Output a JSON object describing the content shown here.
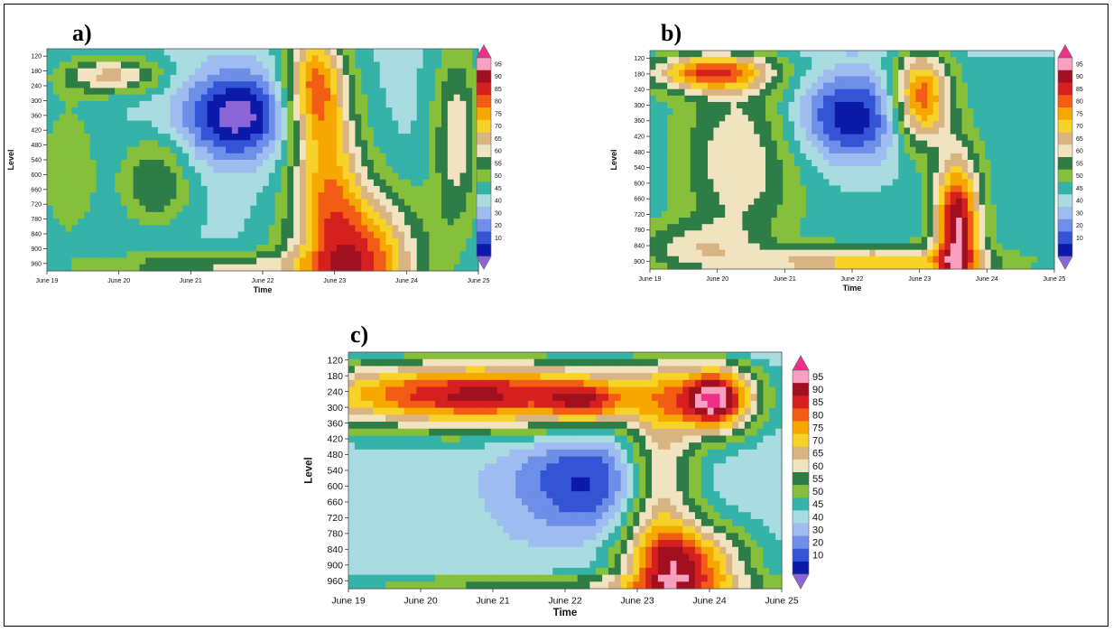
{
  "chart_data": [
    {
      "type": "heatmap",
      "panel_label": "a)",
      "xlabel": "Time",
      "ylabel": "Level",
      "x_ticks": [
        "June 19",
        "June 20",
        "June 21",
        "June 22",
        "June 23",
        "June 24",
        "June 25"
      ],
      "y_ticks": [
        120,
        180,
        240,
        300,
        360,
        420,
        480,
        540,
        600,
        660,
        720,
        780,
        840,
        900,
        960
      ],
      "colorbar_ticks": [
        10,
        20,
        30,
        40,
        45,
        50,
        55,
        60,
        65,
        70,
        75,
        80,
        85,
        90,
        95
      ],
      "grid": false,
      "colorbar_placement": "right"
    },
    {
      "type": "heatmap",
      "panel_label": "b)",
      "xlabel": "Time",
      "ylabel": "Level",
      "x_ticks": [
        "June 19",
        "June 20",
        "June 21",
        "June 22",
        "June 23",
        "June 24",
        "June 25"
      ],
      "y_ticks": [
        120,
        180,
        240,
        300,
        360,
        420,
        480,
        540,
        600,
        660,
        720,
        780,
        840,
        900
      ],
      "colorbar_ticks": [
        10,
        20,
        30,
        40,
        45,
        50,
        55,
        60,
        65,
        70,
        75,
        80,
        85,
        90,
        95
      ],
      "grid": false,
      "colorbar_placement": "right"
    },
    {
      "type": "heatmap",
      "panel_label": "c)",
      "xlabel": "Time",
      "ylabel": "Level",
      "x_ticks": [
        "June 19",
        "June 20",
        "June 21",
        "June 22",
        "June 23",
        "June 24",
        "June 25"
      ],
      "y_ticks": [
        120,
        180,
        240,
        300,
        360,
        420,
        480,
        540,
        600,
        660,
        720,
        780,
        840,
        900,
        960
      ],
      "colorbar_ticks": [
        10,
        20,
        30,
        40,
        45,
        50,
        55,
        60,
        65,
        70,
        75,
        80,
        85,
        90,
        95
      ],
      "grid": false,
      "colorbar_placement": "right"
    }
  ],
  "colorscale": [
    "#8a66d6",
    "#0b1aa8",
    "#3454d6",
    "#6d8fe8",
    "#9fbcf0",
    "#a9dce0",
    "#35b3a8",
    "#86bf3a",
    "#2e7d46",
    "#f2e3c0",
    "#d9b483",
    "#f7d229",
    "#f6a700",
    "#f25c14",
    "#d62020",
    "#a01020",
    "#f7a0c0",
    "#ef2f8a"
  ],
  "colorbar_colors": [
    "#0b1aa8",
    "#3454d6",
    "#6d8fe8",
    "#9fbcf0",
    "#a9dce0",
    "#35b3a8",
    "#86bf3a",
    "#2e7d46",
    "#f2e3c0",
    "#d9b483",
    "#f7d229",
    "#f6a700",
    "#f25c14",
    "#d62020",
    "#a01020",
    "#f7a0c0"
  ],
  "colorbar_extend_low": "#8a66d6",
  "colorbar_extend_high": "#ef2f8a"
}
